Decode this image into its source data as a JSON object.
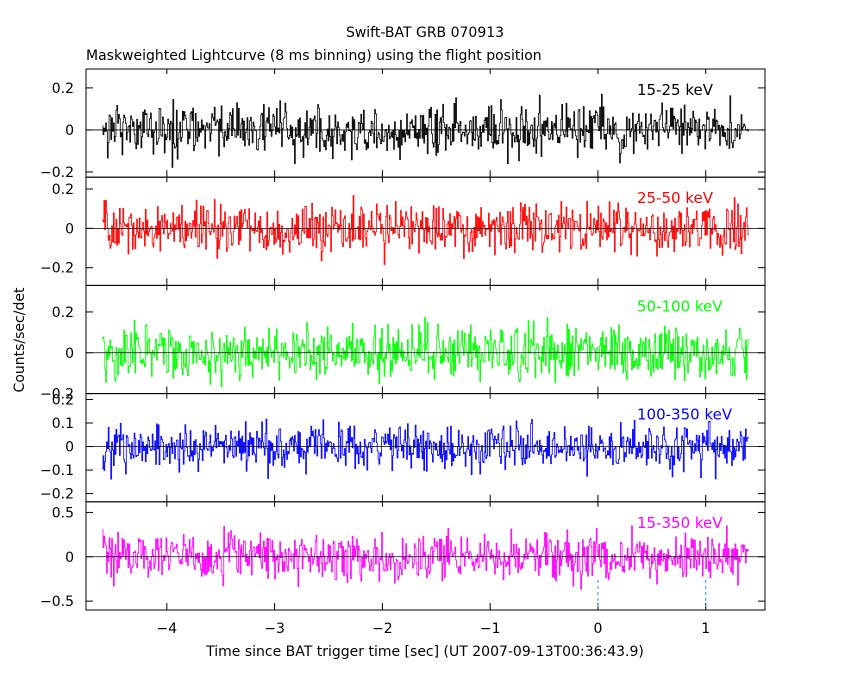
{
  "chart_data": {
    "type": "line",
    "title": "Swift-BAT GRB 070913",
    "subtitle": "Maskweighted Lightcurve (8 ms binning) using the flight position",
    "xlabel": "Time since BAT trigger time [sec] (UT 2007-09-13T00:36:43.9)",
    "ylabel": "Counts/sec/det",
    "xlim": [
      -4.75,
      1.55
    ],
    "x_ticks": [
      -4,
      -3,
      -2,
      -1,
      0,
      1
    ],
    "x_tick_labels": [
      "−4",
      "−3",
      "−2",
      "−1",
      "0",
      "1"
    ],
    "data_x_range": [
      -4.6,
      1.4
    ],
    "bin_width": 0.008,
    "grid": false,
    "markers": [
      0,
      1
    ],
    "panels": [
      {
        "name": "15-25 keV",
        "color": "#000000",
        "ylim": [
          -0.225,
          0.29
        ],
        "amplitude": 0.085,
        "y_ticks": [
          -0.2,
          0,
          0.2
        ],
        "y_tick_labels": [
          "−0.2",
          "0",
          "0.2"
        ]
      },
      {
        "name": "25-50 keV",
        "color": "#ff0000",
        "ylim": [
          -0.29,
          0.26
        ],
        "amplitude": 0.095,
        "y_ticks": [
          -0.2,
          0,
          0.2
        ],
        "y_tick_labels": [
          "−0.2",
          "0",
          "0.2"
        ]
      },
      {
        "name": "50-100 keV",
        "color": "#00ff00",
        "ylim": [
          -0.2,
          0.33
        ],
        "amplitude": 0.095,
        "y_ticks": [
          -0.2,
          0,
          0.2
        ],
        "y_tick_labels": [
          "−0.2",
          "0",
          "0.2"
        ]
      },
      {
        "name": "100-350 keV",
        "color": "#0000ff",
        "ylim": [
          -0.235,
          0.225
        ],
        "amplitude": 0.07,
        "y_ticks": [
          -0.2,
          -0.1,
          0,
          0.1,
          0.2
        ],
        "y_tick_labels": [
          "−0.2",
          "−0.1",
          "0",
          "0.1",
          "0.2"
        ]
      },
      {
        "name": "15-350 keV",
        "color": "#ff00ff",
        "ylim": [
          -0.6,
          0.62
        ],
        "amplitude": 0.19,
        "y_ticks": [
          -0.5,
          0,
          0.5
        ],
        "y_tick_labels": [
          "−0.5",
          "0",
          "0.5"
        ]
      }
    ]
  }
}
